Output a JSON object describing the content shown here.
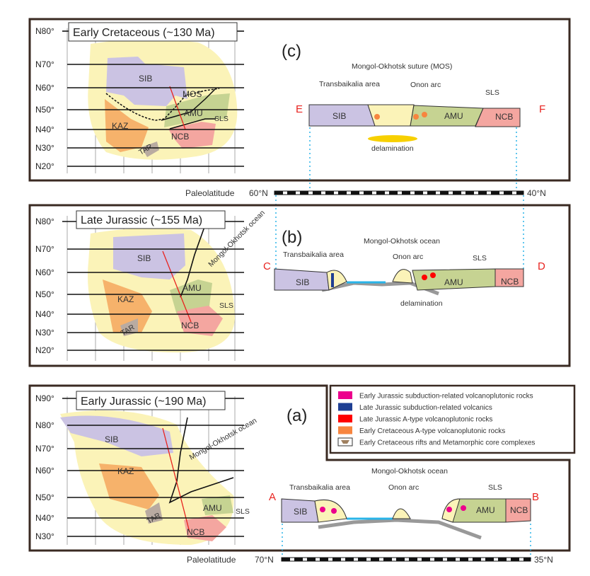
{
  "colors": {
    "sib": "#cbc3e3",
    "bg": "#fbf3b8",
    "kaz": "#f6b26b",
    "tar": "#b9aba1",
    "amu": "#c6d392",
    "ncb": "#f4a6a0",
    "ocean": "#29b4e8",
    "delam": "#f7d000",
    "frame": "#3a2a22",
    "section_red": "#e8231f"
  },
  "panel_c": {
    "label": "(c)",
    "title": "Early Cretaceous (~130 Ma)",
    "lats": [
      "N80°",
      "N70°",
      "N60°",
      "N50°",
      "N40°",
      "N30°",
      "N20°"
    ],
    "map": {
      "sib": "SIB",
      "mos": "MOS",
      "amu": "AMU",
      "sls": "SLS",
      "kaz": "KAZ",
      "tar": "TAR",
      "ncb": "NCB",
      "start": "E",
      "end": "F"
    },
    "section": {
      "start": "E",
      "end": "F",
      "sib": "SIB",
      "amu": "AMU",
      "ncb": "NCB",
      "suture": "Mongol-Okhotsk suture (MOS)",
      "transbaikalia": "Transbaikalia area",
      "onon": "Onon arc",
      "sls": "SLS",
      "delamination": "delamination"
    }
  },
  "scale_cb": {
    "label": "Paleolatitude",
    "left": "60°N",
    "right": "40°N"
  },
  "panel_b": {
    "label": "(b)",
    "title": "Late Jurassic (~155 Ma)",
    "lats": [
      "N80°",
      "N70°",
      "N60°",
      "N50°",
      "N40°",
      "N30°",
      "N20°"
    ],
    "map": {
      "sib": "SIB",
      "ocean": "Mongol-Okhotsk ocean",
      "amu": "AMU",
      "sls": "SLS",
      "kaz": "KAZ",
      "tar": "TAR",
      "ncb": "NCB",
      "start": "C",
      "end": "D"
    },
    "section": {
      "start": "C",
      "end": "D",
      "sib": "SIB",
      "amu": "AMU",
      "ncb": "NCB",
      "ocean": "Mongol-Okhotsk ocean",
      "transbaikalia": "Transbaikalia area",
      "onon": "Onon arc",
      "sls": "SLS",
      "delamination": "delamination"
    }
  },
  "panel_a": {
    "label": "(a)",
    "title": "Early Jurassic (~190 Ma)",
    "lats": [
      "N90°",
      "N80°",
      "N70°",
      "N60°",
      "N50°",
      "N40°",
      "N30°"
    ],
    "map": {
      "sib": "SIB",
      "ocean": "Mongol-Okhotsk ocean",
      "amu": "AMU",
      "sls": "SLS",
      "kaz": "KAZ",
      "tar": "TAR",
      "ncb": "NCB",
      "start": "A",
      "end": "B"
    },
    "section": {
      "start": "A",
      "end": "B",
      "sib": "SIB",
      "amu": "AMU",
      "ncb": "NCB",
      "ocean": "Mongol-Okhotsk ocean",
      "transbaikalia": "Transbaikalia area",
      "onon": "Onon arc",
      "sls": "SLS"
    }
  },
  "scale_a": {
    "label": "Paleolatitude",
    "left": "70°N",
    "right": "35°N"
  },
  "legend": [
    {
      "label": "Early Jurassic subduction-related volcanoplutonic rocks",
      "color": "#ec008c"
    },
    {
      "label": "Late Jurassic subduction-related volcanics",
      "color": "#1f3f93"
    },
    {
      "label": "Late Jurassic A-type volcanoplutonic rocks",
      "color": "#ff0000"
    },
    {
      "label": "Early Cretaceous A-type volcanoplutonic rocks",
      "color": "#f7853f"
    },
    {
      "label": "Early Cretaceous rifts and Metamorphic core complexes",
      "color": "#a08060"
    }
  ]
}
